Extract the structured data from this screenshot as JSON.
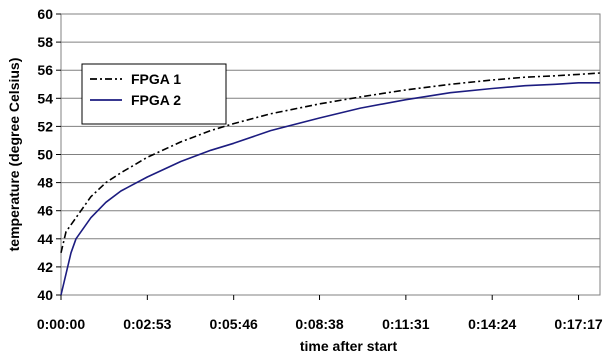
{
  "chart_data": {
    "type": "line",
    "title": "",
    "xlabel": "time after start",
    "ylabel": "temperature (degree Celsius)",
    "x_unit": "h:mm:ss",
    "xlim": [
      "0:00:00",
      "0:18:00"
    ],
    "ylim": [
      40,
      60
    ],
    "x_ticks": [
      "0:00:00",
      "0:02:53",
      "0:05:46",
      "0:08:38",
      "0:11:31",
      "0:14:24",
      "0:17:17"
    ],
    "y_ticks": [
      40,
      42,
      44,
      46,
      48,
      50,
      52,
      54,
      56,
      58,
      60
    ],
    "grid": "horizontal",
    "legend": {
      "position": "upper-left",
      "entries": [
        "FPGA 1",
        "FPGA 2"
      ]
    },
    "series": [
      {
        "name": "FPGA 1",
        "color": "#000000",
        "line_style": "dash-dot",
        "x": [
          "0:00:00",
          "0:00:10",
          "0:00:30",
          "0:01:00",
          "0:01:30",
          "0:02:00",
          "0:02:53",
          "0:04:00",
          "0:05:00",
          "0:05:46",
          "0:07:00",
          "0:08:38",
          "0:10:00",
          "0:11:31",
          "0:13:00",
          "0:14:24",
          "0:15:30",
          "0:16:30",
          "0:17:17",
          "0:18:00"
        ],
        "values": [
          43.0,
          44.5,
          45.5,
          47.0,
          48.0,
          48.7,
          49.8,
          50.9,
          51.7,
          52.2,
          52.9,
          53.6,
          54.1,
          54.6,
          55.0,
          55.3,
          55.5,
          55.6,
          55.7,
          55.8
        ]
      },
      {
        "name": "FPGA 2",
        "color": "#1c1c80",
        "line_style": "solid",
        "x": [
          "0:00:00",
          "0:00:10",
          "0:00:20",
          "0:00:30",
          "0:01:00",
          "0:01:30",
          "0:02:00",
          "0:02:53",
          "0:04:00",
          "0:05:00",
          "0:05:46",
          "0:07:00",
          "0:08:38",
          "0:10:00",
          "0:11:31",
          "0:13:00",
          "0:14:24",
          "0:15:30",
          "0:16:30",
          "0:17:17",
          "0:18:00"
        ],
        "values": [
          40.0,
          41.5,
          43.0,
          44.0,
          45.5,
          46.6,
          47.4,
          48.4,
          49.5,
          50.3,
          50.8,
          51.7,
          52.6,
          53.3,
          53.9,
          54.4,
          54.7,
          54.9,
          55.0,
          55.1,
          55.1
        ]
      }
    ]
  }
}
